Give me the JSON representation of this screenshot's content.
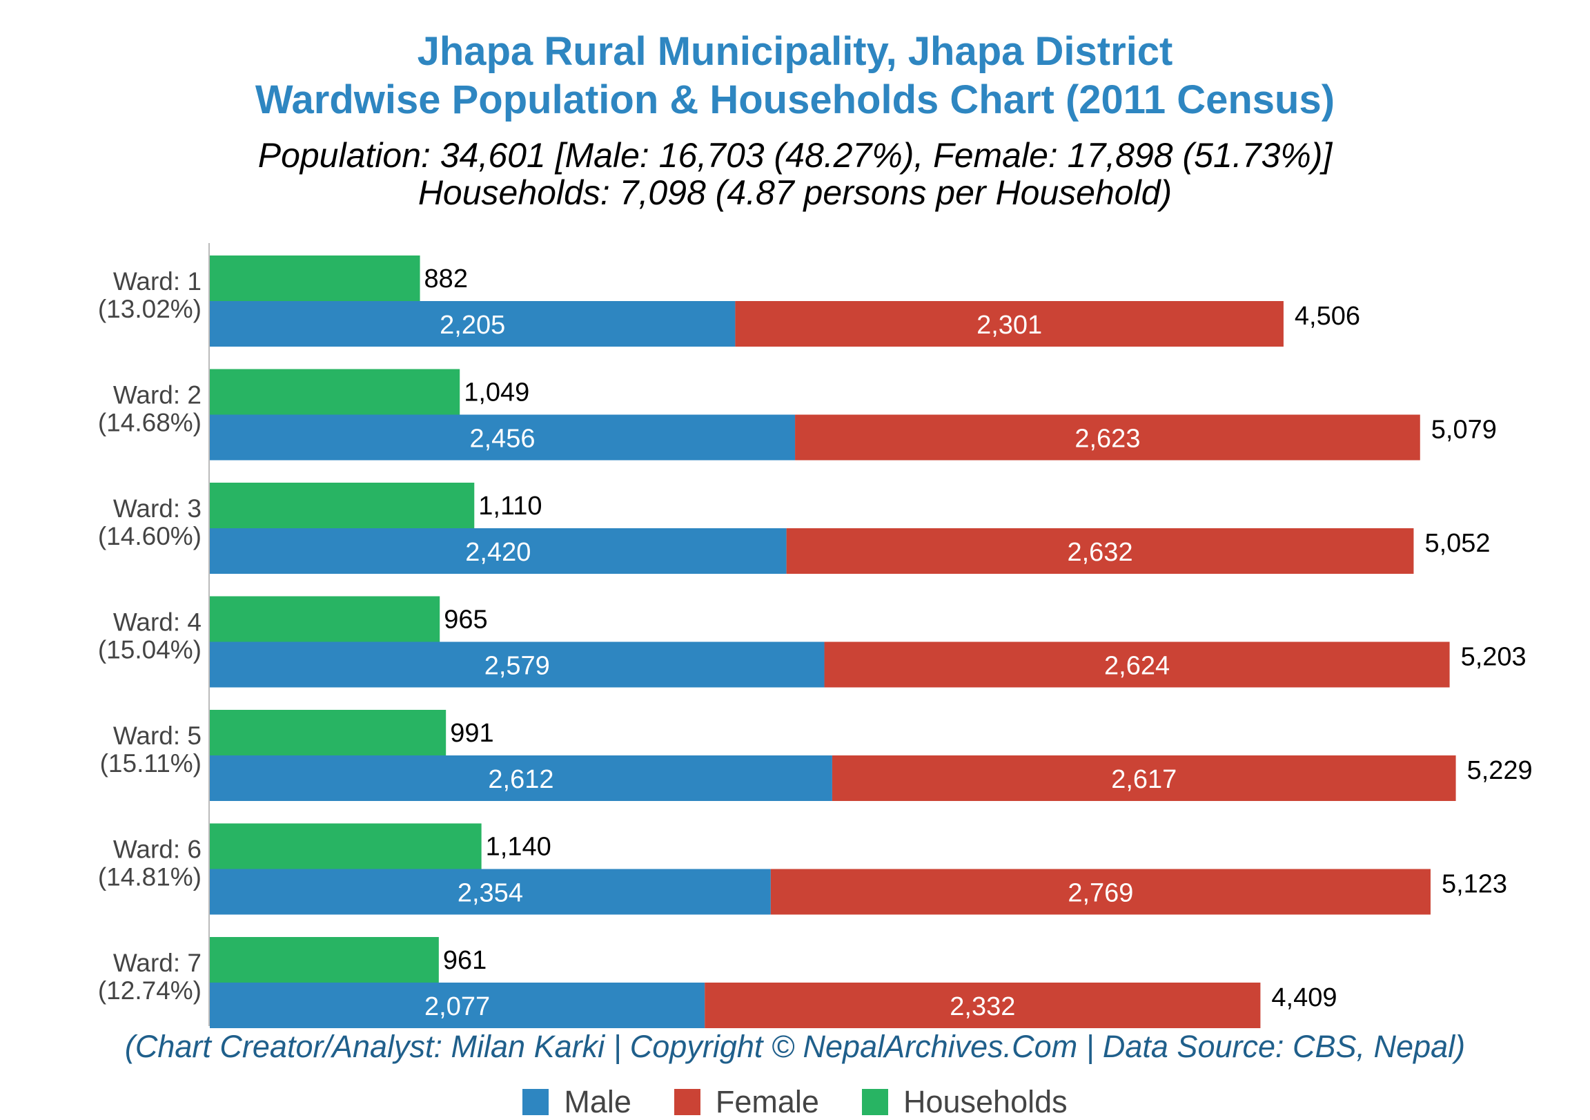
{
  "header": {
    "title_line1": "Jhapa Rural Municipality, Jhapa District",
    "title_line2": "Wardwise Population & Households Chart (2011 Census)",
    "subtitle_line1": "Population: 34,601 [Male: 16,703 (48.27%), Female: 17,898 (51.73%)]",
    "subtitle_line2": "Households: 7,098 (4.87 persons per Household)"
  },
  "credit": "(Chart Creator/Analyst: Milan Karki | Copyright © NepalArchives.Com | Data Source: CBS, Nepal)",
  "colors": {
    "male": "#2e86c1",
    "female": "#cb4335",
    "households": "#28b463",
    "title": "#2e86c1",
    "credit": "#1f5f8b"
  },
  "legend": [
    {
      "label": "Male",
      "color": "#2e86c1"
    },
    {
      "label": "Female",
      "color": "#cb4335"
    },
    {
      "label": "Households",
      "color": "#28b463"
    }
  ],
  "chart_data": {
    "type": "bar",
    "orientation": "horizontal",
    "categories": [
      "Ward: 1",
      "Ward: 2",
      "Ward: 3",
      "Ward: 4",
      "Ward: 5",
      "Ward: 6",
      "Ward: 7"
    ],
    "category_percent_labels": [
      "(13.02%)",
      "(14.68%)",
      "(14.60%)",
      "(15.04%)",
      "(15.11%)",
      "(14.81%)",
      "(12.74%)"
    ],
    "series": [
      {
        "name": "Households",
        "values": [
          882,
          1049,
          1110,
          965,
          991,
          1140,
          961
        ],
        "labels": [
          "882",
          "1,049",
          "1,110",
          "965",
          "991",
          "1,140",
          "961"
        ]
      },
      {
        "name": "Male",
        "values": [
          2205,
          2456,
          2420,
          2579,
          2612,
          2354,
          2077
        ],
        "labels": [
          "2,205",
          "2,456",
          "2,420",
          "2,579",
          "2,612",
          "2,354",
          "2,077"
        ]
      },
      {
        "name": "Female",
        "values": [
          2301,
          2623,
          2632,
          2624,
          2617,
          2769,
          2332
        ],
        "labels": [
          "2,301",
          "2,623",
          "2,632",
          "2,624",
          "2,617",
          "2,769",
          "2,332"
        ]
      }
    ],
    "totals": [
      4506,
      5079,
      5052,
      5203,
      5229,
      5123,
      4409
    ],
    "total_labels": [
      "4,506",
      "5,079",
      "5,052",
      "5,203",
      "5,229",
      "5,123",
      "4,409"
    ],
    "stacked": [
      "Male",
      "Female"
    ],
    "xlim": [
      0,
      5500
    ],
    "grid": false,
    "legend_position": "bottom"
  }
}
